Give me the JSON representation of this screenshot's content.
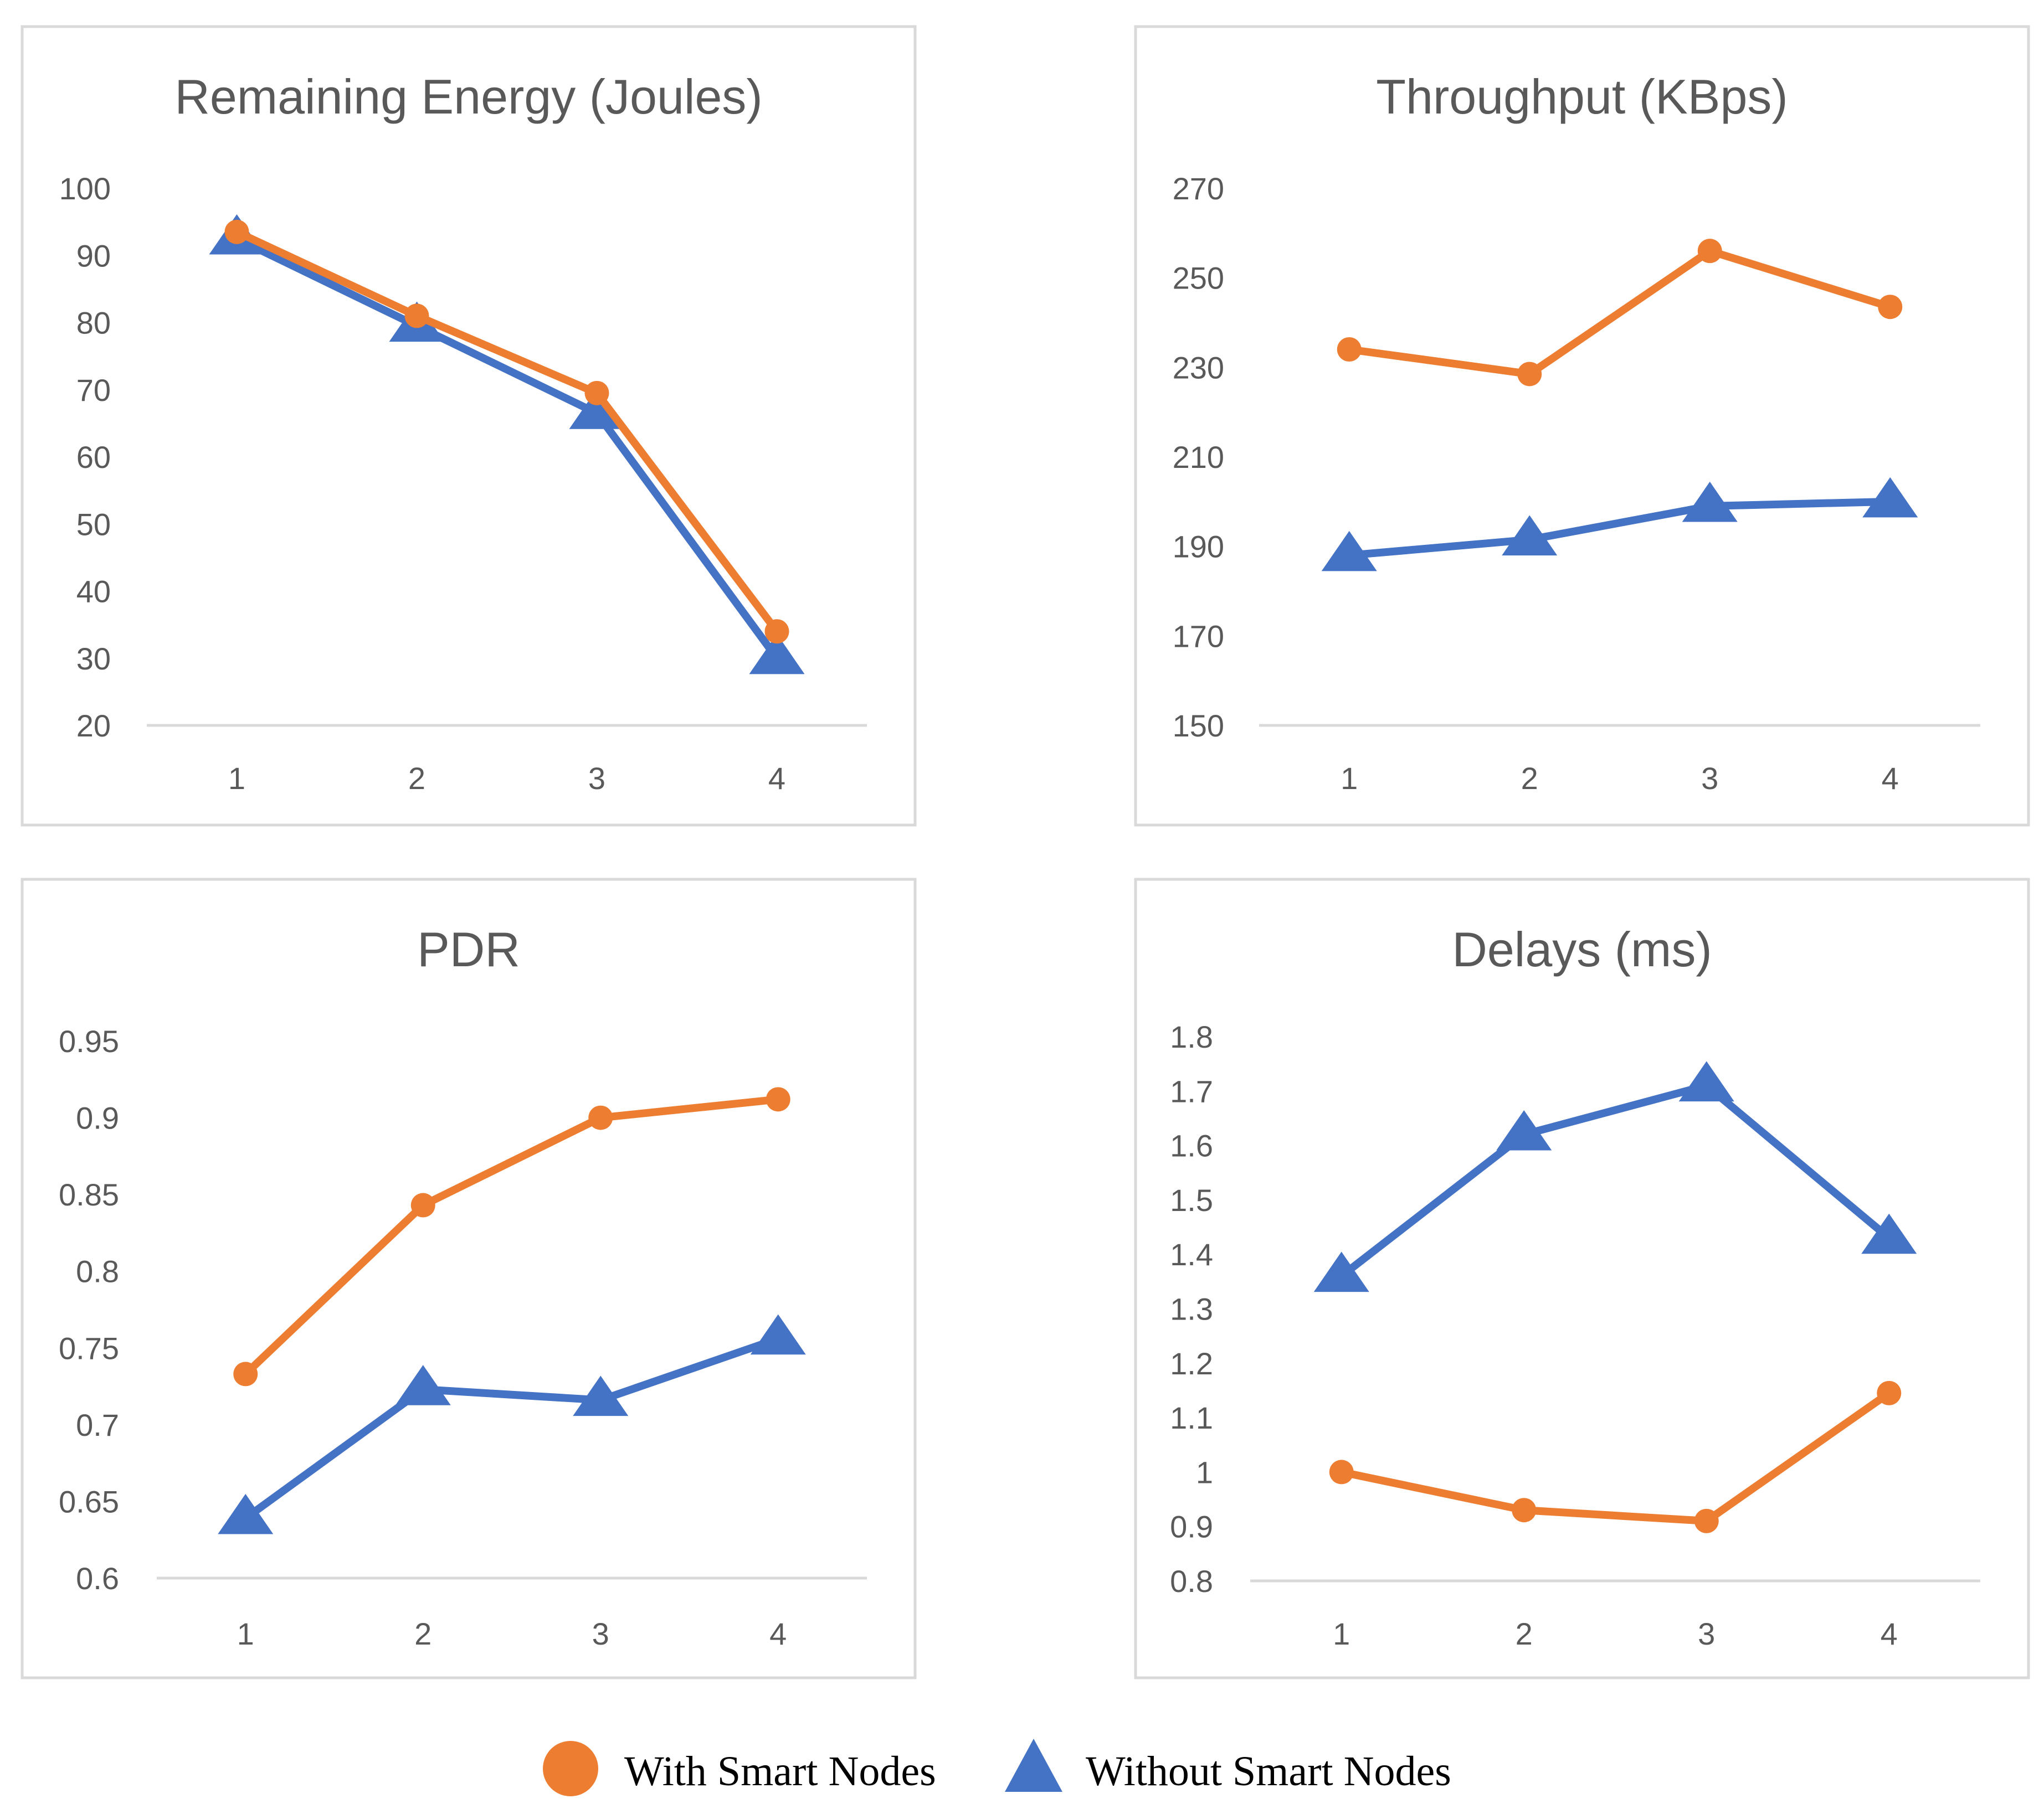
{
  "colors": {
    "with": "#ED7D31",
    "without": "#4472C4",
    "axis": "#D9D9D9",
    "frame": "#D9D9D9",
    "text": "#595959"
  },
  "legend": {
    "with_label": "With Smart Nodes",
    "without_label": "Without Smart Nodes",
    "with_marker": "circle",
    "without_marker": "triangle"
  },
  "chart_data": [
    {
      "type": "line",
      "title": "Remaining Energy (Joules)",
      "categories": [
        "1",
        "2",
        "3",
        "4"
      ],
      "ylim": [
        20,
        100
      ],
      "yticks": [
        "100",
        "90",
        "80",
        "70",
        "60",
        "50",
        "40",
        "30",
        "20"
      ],
      "series": [
        {
          "name": "With Smart Nodes",
          "values": [
            93.5,
            81,
            69.5,
            34
          ]
        },
        {
          "name": "Without Smart Nodes",
          "values": [
            92.5,
            79.5,
            66.5,
            30
          ]
        }
      ]
    },
    {
      "type": "line",
      "title": "Throughput (KBps)",
      "categories": [
        "1",
        "2",
        "3",
        "4"
      ],
      "ylim": [
        150,
        270
      ],
      "yticks": [
        "270",
        "250",
        "230",
        "210",
        "190",
        "170",
        "150"
      ],
      "series": [
        {
          "name": "With Smart Nodes",
          "values": [
            234,
            228.5,
            256,
            243.5
          ]
        },
        {
          "name": "Without Smart Nodes",
          "values": [
            188,
            191.5,
            199,
            200
          ]
        }
      ]
    },
    {
      "type": "line",
      "title": "PDR",
      "categories": [
        "1",
        "2",
        "3",
        "4"
      ],
      "ylim": [
        0.6,
        0.95
      ],
      "yticks": [
        "0.95",
        "0.9",
        "0.85",
        "0.8",
        "0.75",
        "0.7",
        "0.65",
        "0.6"
      ],
      "series": [
        {
          "name": "With Smart Nodes",
          "values": [
            0.733,
            0.843,
            0.9,
            0.912
          ]
        },
        {
          "name": "Without Smart Nodes",
          "values": [
            0.639,
            0.723,
            0.716,
            0.756
          ]
        }
      ]
    },
    {
      "type": "line",
      "title": "Delays (ms)",
      "categories": [
        "1",
        "2",
        "3",
        "4"
      ],
      "ylim": [
        0.8,
        1.8
      ],
      "yticks": [
        "1.8",
        "1.7",
        "1.6",
        "1.5",
        "1.4",
        "1.3",
        "1.2",
        "1.1",
        "1",
        "0.9",
        "0.8"
      ],
      "series": [
        {
          "name": "With Smart Nodes",
          "values": [
            1.0,
            0.93,
            0.91,
            1.145
          ]
        },
        {
          "name": "Without Smart Nodes",
          "values": [
            1.36,
            1.62,
            1.71,
            1.43
          ]
        }
      ]
    }
  ]
}
